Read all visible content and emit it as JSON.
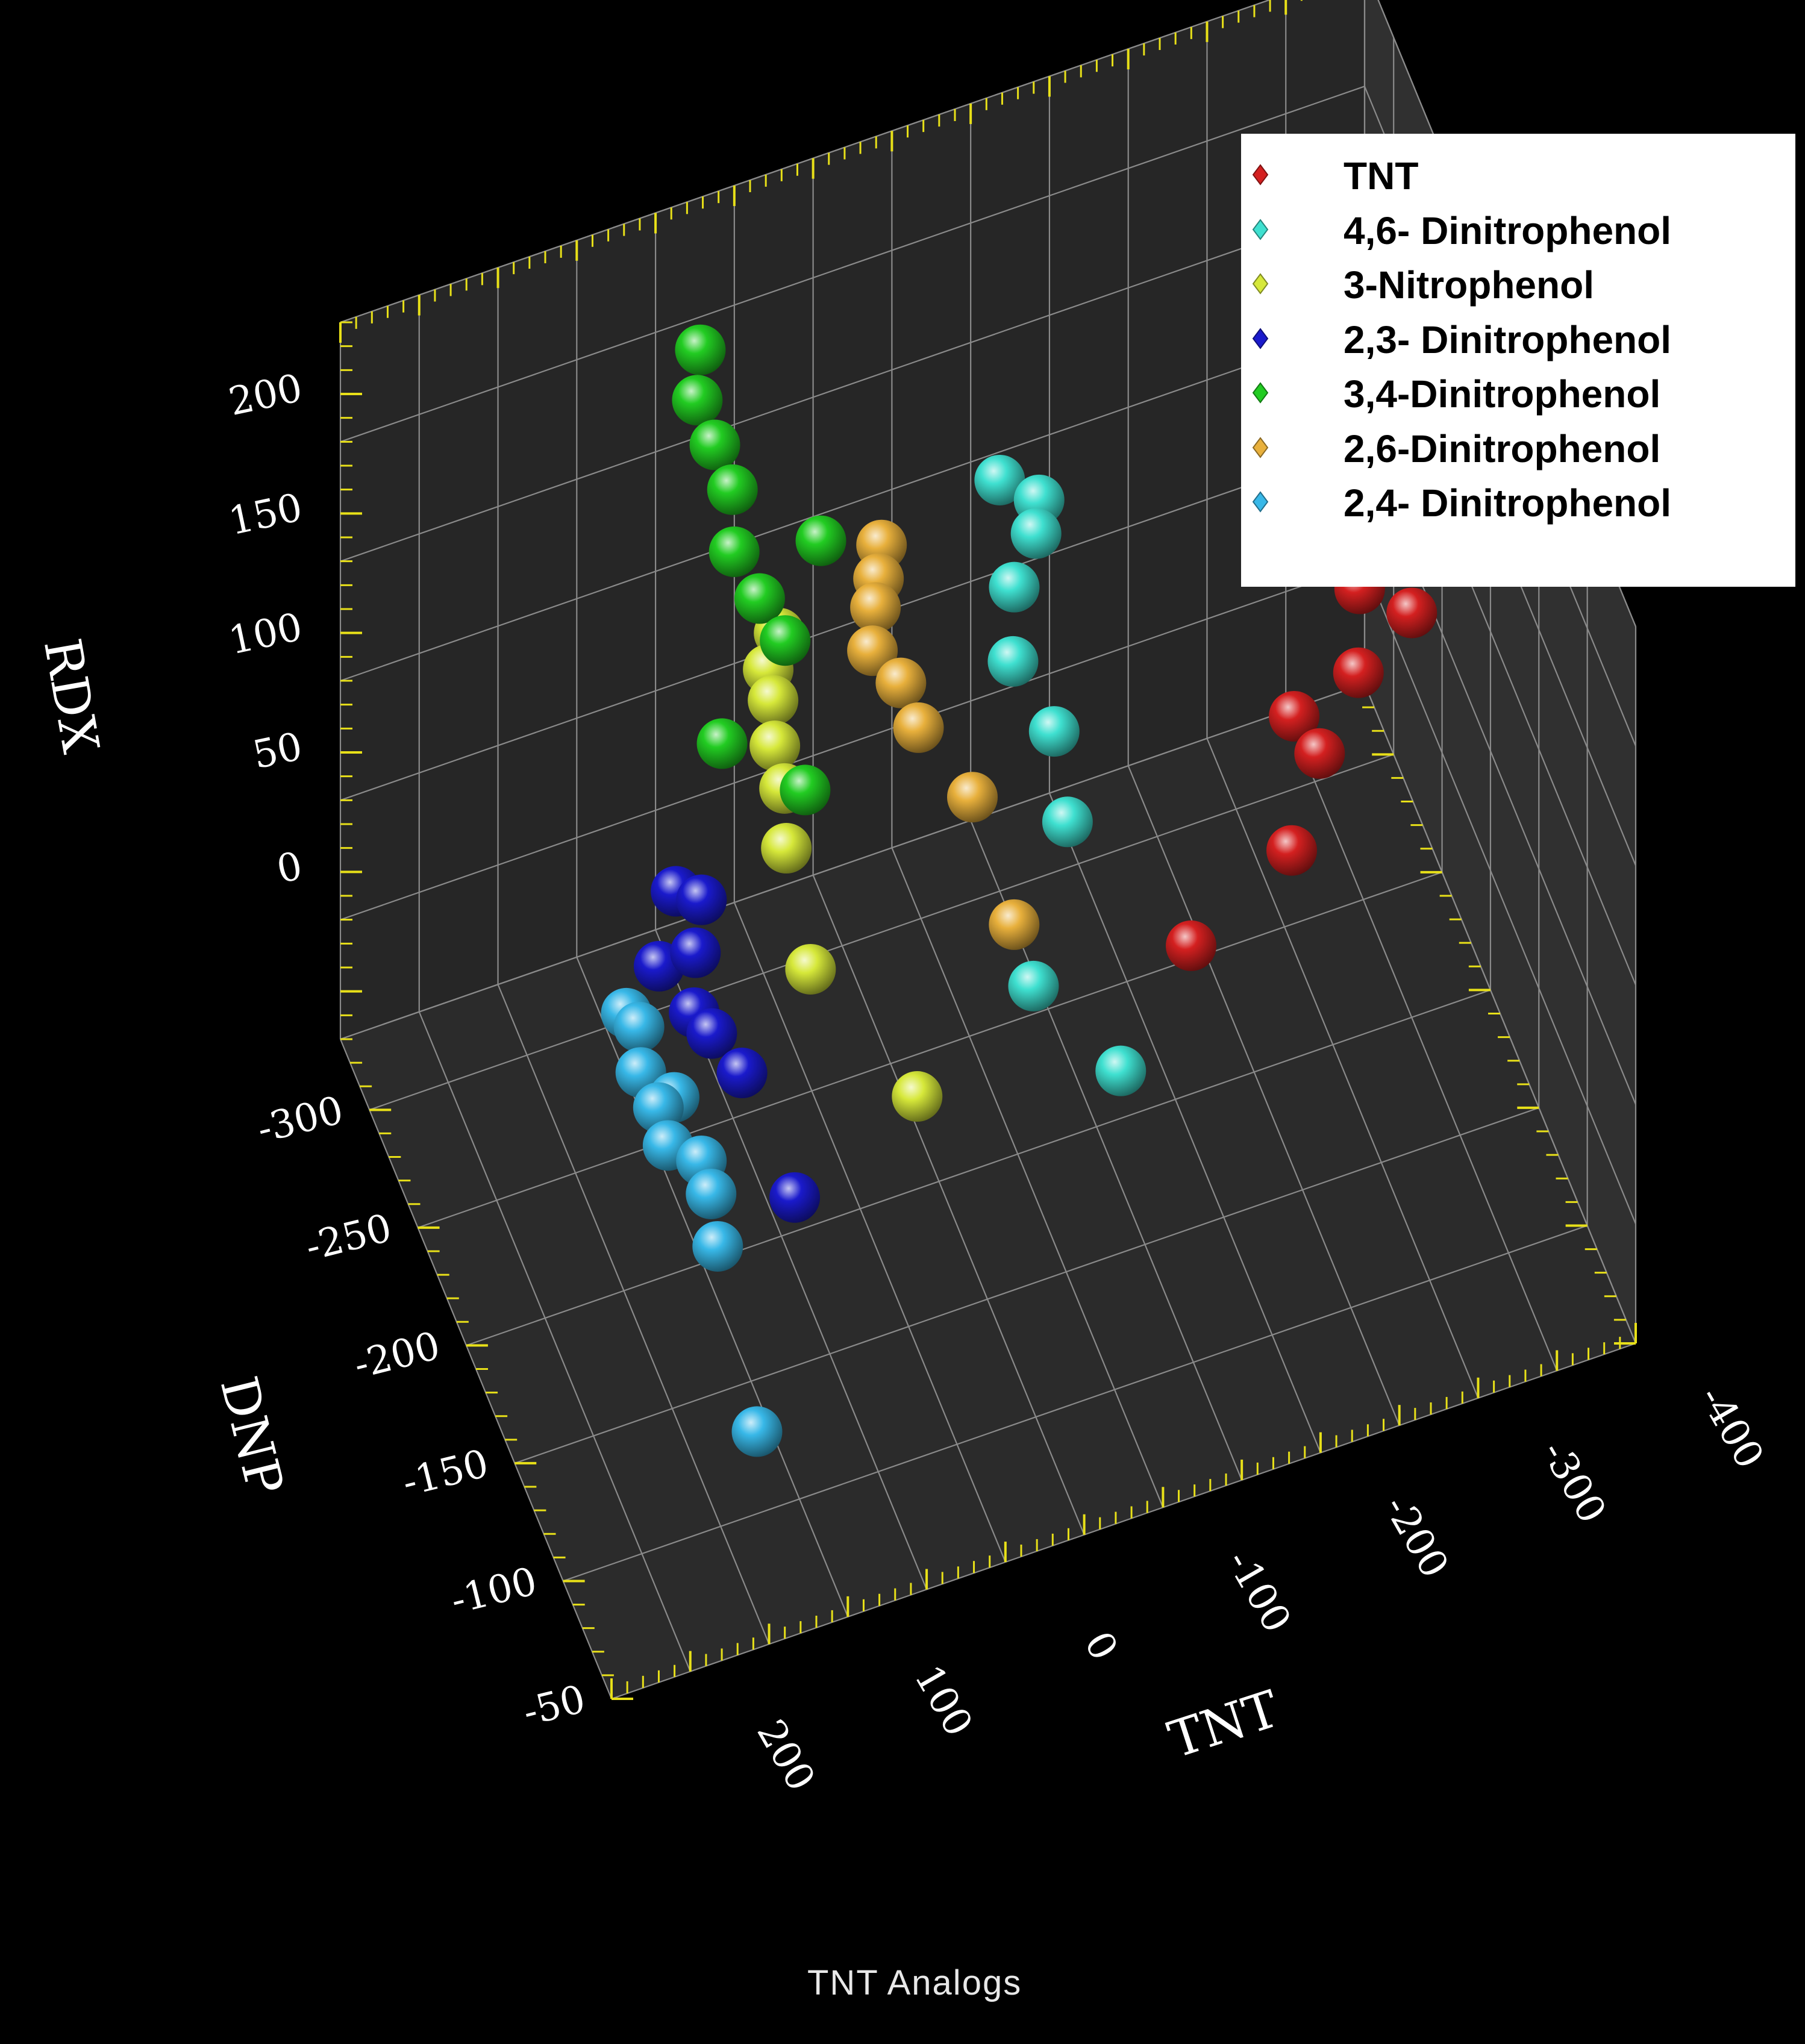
{
  "caption": "TNT Analogs",
  "chart_data": {
    "type": "scatter3d",
    "axes": {
      "x": {
        "label": "TNT",
        "ticks": [
          "200",
          "100",
          "0",
          "-100",
          "-200",
          "-300",
          "-400"
        ]
      },
      "y": {
        "label": "DNP",
        "ticks": [
          "-50",
          "-100",
          "-150",
          "-200",
          "-250",
          "-300"
        ]
      },
      "z": {
        "label": "RDX",
        "ticks": [
          "0",
          "50",
          "100",
          "150",
          "200"
        ]
      }
    },
    "grid": true,
    "legend_position": "top-right",
    "series": [
      {
        "name": "TNT",
        "color": "#d42020",
        "points": [
          [
            -380,
            -285,
            42
          ],
          [
            -330,
            -290,
            46
          ],
          [
            -360,
            -270,
            38
          ],
          [
            -390,
            -265,
            26
          ],
          [
            -350,
            -255,
            20
          ],
          [
            -300,
            -240,
            28
          ],
          [
            -310,
            -230,
            20
          ],
          [
            -280,
            -210,
            6
          ],
          [
            -210,
            -200,
            -8
          ]
        ]
      },
      {
        "name": "4,6- Dinitrophenol",
        "color": "#3fe0d0",
        "points": [
          [
            -150,
            -300,
            102
          ],
          [
            -175,
            -300,
            88
          ],
          [
            -170,
            -295,
            80
          ],
          [
            -150,
            -285,
            72
          ],
          [
            -140,
            -270,
            58
          ],
          [
            -160,
            -260,
            34
          ],
          [
            -150,
            -230,
            28
          ],
          [
            -110,
            -200,
            -2
          ],
          [
            -150,
            -175,
            -22
          ]
        ]
      },
      {
        "name": "3-Nitrophenol",
        "color": "#d6e83a",
        "points": [
          [
            -10,
            -300,
            70
          ],
          [
            0,
            -295,
            62
          ],
          [
            0,
            -290,
            54
          ],
          [
            5,
            -280,
            46
          ],
          [
            5,
            -270,
            38
          ],
          [
            10,
            -260,
            24
          ],
          [
            10,
            -235,
            -2
          ],
          [
            -30,
            -190,
            -20
          ]
        ]
      },
      {
        "name": "2,3- Dinitrophenol",
        "color": "#1a1acc",
        "points": [
          [
            80,
            -260,
            22
          ],
          [
            70,
            -250,
            26
          ],
          [
            100,
            -245,
            10
          ],
          [
            80,
            -240,
            16
          ],
          [
            90,
            -225,
            8
          ],
          [
            85,
            -215,
            8
          ],
          [
            75,
            -200,
            4
          ],
          [
            60,
            -170,
            -22
          ]
        ]
      },
      {
        "name": "3,4-Dinitrophenol",
        "color": "#22cc22",
        "points": [
          [
            40,
            -300,
            200
          ],
          [
            45,
            -295,
            185
          ],
          [
            40,
            -285,
            175
          ],
          [
            35,
            -275,
            165
          ],
          [
            40,
            -265,
            150
          ],
          [
            -15,
            -265,
            142
          ],
          [
            30,
            -255,
            138
          ],
          [
            20,
            -245,
            128
          ],
          [
            60,
            -245,
            94
          ],
          [
            -5,
            -265,
            40
          ]
        ]
      },
      {
        "name": "2,6-Dinitrophenol",
        "color": "#e8b03c",
        "points": [
          [
            -75,
            -300,
            92
          ],
          [
            -70,
            -295,
            84
          ],
          [
            -65,
            -290,
            78
          ],
          [
            -60,
            -285,
            66
          ],
          [
            -75,
            -280,
            54
          ],
          [
            -80,
            -270,
            44
          ],
          [
            -105,
            -255,
            24
          ],
          [
            -110,
            -220,
            4
          ]
        ]
      },
      {
        "name": "2,4- Dinitrophenol",
        "color": "#38b8e8",
        "points": [
          [
            130,
            -230,
            12
          ],
          [
            125,
            -225,
            10
          ],
          [
            130,
            -215,
            2
          ],
          [
            115,
            -205,
            -2
          ],
          [
            125,
            -205,
            -4
          ],
          [
            125,
            -195,
            -10
          ],
          [
            110,
            -185,
            -10
          ],
          [
            110,
            -175,
            -14
          ],
          [
            115,
            -160,
            -20
          ],
          [
            130,
            -95,
            -30
          ]
        ]
      }
    ]
  }
}
